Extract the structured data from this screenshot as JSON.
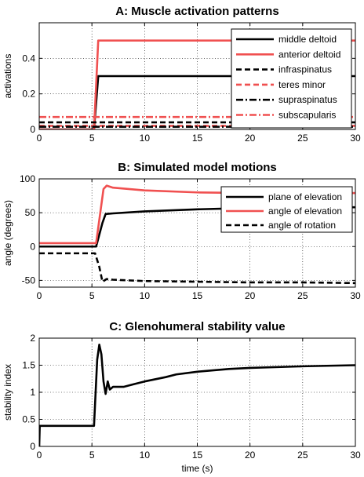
{
  "chart_data": [
    {
      "type": "line",
      "title": "A: Muscle activation patterns",
      "xlabel": "",
      "ylabel": "activations",
      "xlim": [
        0,
        30
      ],
      "ylim": [
        0,
        0.6
      ],
      "xticks": [
        0,
        5,
        10,
        15,
        20,
        25,
        30
      ],
      "yticks": [
        0,
        0.2,
        0.4
      ],
      "ytick_labels": [
        "0",
        "0.2",
        "0.4"
      ],
      "grid": "dotted",
      "legend_position": "top-right",
      "series": [
        {
          "name": "middle deltoid",
          "color": "#000000",
          "dash": "solid",
          "points": [
            [
              0,
              0
            ],
            [
              5.2,
              0
            ],
            [
              5.6,
              0.3
            ],
            [
              30,
              0.3
            ]
          ]
        },
        {
          "name": "anterior deltoid",
          "color": "#f05050",
          "dash": "solid",
          "points": [
            [
              0,
              0
            ],
            [
              5.2,
              0
            ],
            [
              5.6,
              0.5
            ],
            [
              30,
              0.5
            ]
          ]
        },
        {
          "name": "infraspinatus",
          "color": "#000000",
          "dash": "dashed",
          "points": [
            [
              0,
              0.04
            ],
            [
              30,
              0.04
            ]
          ]
        },
        {
          "name": "teres minor",
          "color": "#f05050",
          "dash": "dashed",
          "points": [
            [
              0,
              0.02
            ],
            [
              30,
              0.02
            ]
          ]
        },
        {
          "name": "supraspinatus",
          "color": "#000000",
          "dash": "dashdot",
          "points": [
            [
              0,
              0.015
            ],
            [
              30,
              0.015
            ]
          ]
        },
        {
          "name": "subscapularis",
          "color": "#f05050",
          "dash": "dashdot",
          "points": [
            [
              0,
              0.07
            ],
            [
              30,
              0.07
            ]
          ]
        }
      ]
    },
    {
      "type": "line",
      "title": "B: Simulated model motions",
      "xlabel": "",
      "ylabel": "angle (degrees)",
      "xlim": [
        0,
        30
      ],
      "ylim": [
        -60,
        100
      ],
      "xticks": [
        0,
        5,
        10,
        15,
        20,
        25,
        30
      ],
      "yticks": [
        -50,
        0,
        50,
        100
      ],
      "ytick_labels": [
        "-50",
        "0",
        "50",
        "100"
      ],
      "grid": "dotted",
      "legend_position": "top-right",
      "series": [
        {
          "name": "plane of elevation",
          "color": "#000000",
          "dash": "solid",
          "points": [
            [
              0,
              0
            ],
            [
              5.4,
              0
            ],
            [
              6.0,
              35
            ],
            [
              6.3,
              48
            ],
            [
              7,
              49
            ],
            [
              10,
              52
            ],
            [
              15,
              55
            ],
            [
              20,
              57
            ],
            [
              25,
              58
            ],
            [
              30,
              58
            ]
          ]
        },
        {
          "name": "angle of elevation",
          "color": "#f05050",
          "dash": "solid",
          "points": [
            [
              0,
              5
            ],
            [
              5.4,
              5
            ],
            [
              6.1,
              85
            ],
            [
              6.4,
              90
            ],
            [
              7,
              87
            ],
            [
              10,
              83
            ],
            [
              15,
              80
            ],
            [
              20,
              79
            ],
            [
              25,
              79
            ],
            [
              30,
              79
            ]
          ]
        },
        {
          "name": "angle of rotation",
          "color": "#000000",
          "dash": "dashed",
          "points": [
            [
              0,
              -10
            ],
            [
              5.3,
              -10
            ],
            [
              5.7,
              -30
            ],
            [
              6.0,
              -52
            ],
            [
              6.4,
              -48
            ],
            [
              7,
              -49
            ],
            [
              10,
              -51
            ],
            [
              15,
              -52
            ],
            [
              20,
              -53
            ],
            [
              25,
              -53
            ],
            [
              30,
              -54
            ]
          ]
        }
      ]
    },
    {
      "type": "line",
      "title": "C: Glenohumeral stability value",
      "xlabel": "time (s)",
      "ylabel": "stability index",
      "xlim": [
        0,
        30
      ],
      "ylim": [
        0,
        2
      ],
      "xticks": [
        0,
        5,
        10,
        15,
        20,
        25,
        30
      ],
      "yticks": [
        0,
        0.5,
        1,
        1.5,
        2
      ],
      "ytick_labels": [
        "0",
        "0.5",
        "1",
        "1.5",
        "2"
      ],
      "grid": "dotted",
      "legend_position": "",
      "series": [
        {
          "name": "",
          "color": "#000000",
          "dash": "solid",
          "points": [
            [
              0,
              0
            ],
            [
              0.05,
              0.38
            ],
            [
              5.2,
              0.38
            ],
            [
              5.5,
              1.6
            ],
            [
              5.7,
              1.88
            ],
            [
              5.9,
              1.7
            ],
            [
              6.1,
              1.2
            ],
            [
              6.3,
              0.97
            ],
            [
              6.5,
              1.2
            ],
            [
              6.7,
              1.05
            ],
            [
              7,
              1.1
            ],
            [
              8,
              1.1
            ],
            [
              9,
              1.15
            ],
            [
              10,
              1.2
            ],
            [
              12,
              1.28
            ],
            [
              13,
              1.33
            ],
            [
              15,
              1.38
            ],
            [
              18,
              1.43
            ],
            [
              20,
              1.45
            ],
            [
              25,
              1.48
            ],
            [
              30,
              1.5
            ]
          ]
        }
      ]
    }
  ]
}
